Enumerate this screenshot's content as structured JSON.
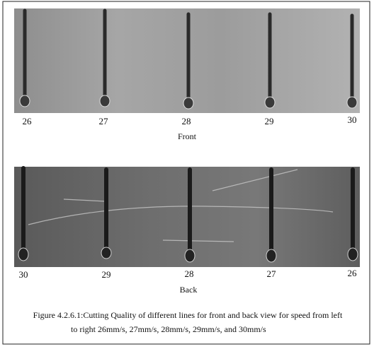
{
  "figure": {
    "front": {
      "labels": [
        26,
        27,
        28,
        29,
        30
      ],
      "title": "Front"
    },
    "back": {
      "labels": [
        30,
        29,
        28,
        27,
        26
      ],
      "title": "Back"
    },
    "caption": [
      "Figure 4.2.6.1:Cutting Quality of different lines for front and back view for speed from left",
      "to right 26mm/s, 27mm/s, 28mm/s, 29mm/s, and 30mm/s"
    ]
  }
}
